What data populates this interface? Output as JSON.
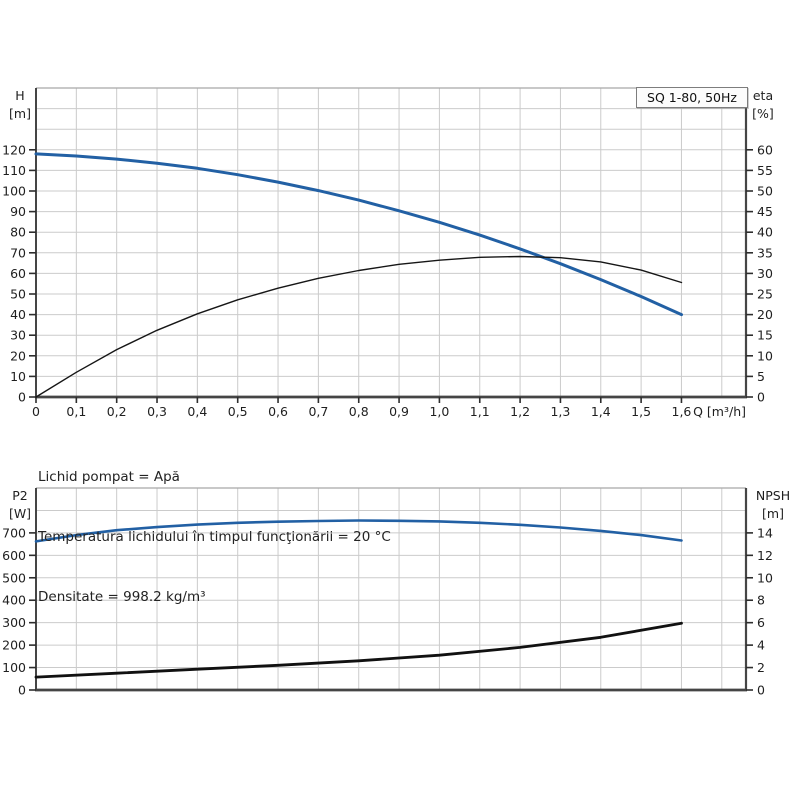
{
  "page": {
    "background": "#ffffff",
    "accent_blue": "#2260a4",
    "curve_black": "#161616",
    "grid_color": "#cbcbcb"
  },
  "info": {
    "lines": [
      "Lichid pompat = Apă",
      "Temperatura lichidului în timpul funcţionării = 20 °C",
      "Densitate = 998.2 kg/m³"
    ]
  },
  "chart_data": [
    {
      "id": "qh-eta",
      "type": "line",
      "title": "SQ 1-80, 50Hz",
      "grid": true,
      "x": {
        "min": 0,
        "max": 1.76,
        "grid_step": 0.1,
        "unit_label": "Q [m³/h]",
        "ticks": [
          [
            0,
            "0"
          ],
          [
            0.1,
            "0,1"
          ],
          [
            0.2,
            "0,2"
          ],
          [
            0.3,
            "0,3"
          ],
          [
            0.4,
            "0,4"
          ],
          [
            0.5,
            "0,5"
          ],
          [
            0.6,
            "0,6"
          ],
          [
            0.7,
            "0,7"
          ],
          [
            0.8,
            "0,8"
          ],
          [
            0.9,
            "0,9"
          ],
          [
            1.0,
            "1,0"
          ],
          [
            1.1,
            "1,1"
          ],
          [
            1.2,
            "1,2"
          ],
          [
            1.3,
            "1,3"
          ],
          [
            1.4,
            "1,4"
          ],
          [
            1.5,
            "1,5"
          ],
          [
            1.6,
            "1,6"
          ]
        ]
      },
      "left": {
        "name": "H",
        "unit": "[m]",
        "min": 0,
        "max": 150,
        "grid_step": 10,
        "ticks": [
          [
            0,
            "0"
          ],
          [
            10,
            "10"
          ],
          [
            20,
            "20"
          ],
          [
            30,
            "30"
          ],
          [
            40,
            "40"
          ],
          [
            50,
            "50"
          ],
          [
            60,
            "60"
          ],
          [
            70,
            "70"
          ],
          [
            80,
            "80"
          ],
          [
            90,
            "90"
          ],
          [
            100,
            "100"
          ],
          [
            110,
            "110"
          ],
          [
            120,
            "120"
          ]
        ]
      },
      "right": {
        "name": "eta",
        "unit": "[%]",
        "min": 0,
        "max": 75,
        "ticks": [
          [
            0,
            "0"
          ],
          [
            5,
            "5"
          ],
          [
            10,
            "10"
          ],
          [
            15,
            "15"
          ],
          [
            20,
            "20"
          ],
          [
            25,
            "25"
          ],
          [
            30,
            "30"
          ],
          [
            35,
            "35"
          ],
          [
            40,
            "40"
          ],
          [
            45,
            "45"
          ],
          [
            50,
            "50"
          ],
          [
            55,
            "55"
          ],
          [
            60,
            "60"
          ]
        ]
      },
      "series": [
        {
          "name": "head-curve",
          "label": "H",
          "axis": "left",
          "color": "#2260a4",
          "width": 3,
          "points": [
            [
              0,
              118
            ],
            [
              0.1,
              117
            ],
            [
              0.2,
              115.5
            ],
            [
              0.3,
              113.5
            ],
            [
              0.4,
              111
            ],
            [
              0.5,
              107.9
            ],
            [
              0.6,
              104.3
            ],
            [
              0.7,
              100.2
            ],
            [
              0.8,
              95.6
            ],
            [
              0.9,
              90.4
            ],
            [
              1.0,
              84.8
            ],
            [
              1.1,
              78.6
            ],
            [
              1.2,
              71.9
            ],
            [
              1.3,
              64.7
            ],
            [
              1.4,
              57.0
            ],
            [
              1.5,
              48.8
            ],
            [
              1.6,
              40
            ]
          ]
        },
        {
          "name": "efficiency-curve",
          "label": "eta",
          "axis": "right",
          "color": "#161616",
          "width": 1.4,
          "points": [
            [
              0,
              0
            ],
            [
              0.1,
              6
            ],
            [
              0.2,
              11.5
            ],
            [
              0.3,
              16.2
            ],
            [
              0.4,
              20.2
            ],
            [
              0.5,
              23.6
            ],
            [
              0.6,
              26.4
            ],
            [
              0.7,
              28.8
            ],
            [
              0.8,
              30.7
            ],
            [
              0.9,
              32.2
            ],
            [
              1.0,
              33.2
            ],
            [
              1.1,
              33.9
            ],
            [
              1.2,
              34.1
            ],
            [
              1.3,
              33.8
            ],
            [
              1.4,
              32.8
            ],
            [
              1.5,
              30.8
            ],
            [
              1.6,
              27.8
            ]
          ]
        }
      ]
    },
    {
      "id": "p2-npsh",
      "type": "line",
      "title": "",
      "grid": true,
      "x": {
        "min": 0,
        "max": 1.76,
        "grid_step": 0.1,
        "unit_label": "",
        "ticks": []
      },
      "left": {
        "name": "P2",
        "unit": "[W]",
        "min": 0,
        "max": 900,
        "grid_step": 100,
        "ticks": [
          [
            0,
            "0"
          ],
          [
            100,
            "100"
          ],
          [
            200,
            "200"
          ],
          [
            300,
            "300"
          ],
          [
            400,
            "400"
          ],
          [
            500,
            "500"
          ],
          [
            600,
            "600"
          ],
          [
            700,
            "700"
          ]
        ]
      },
      "right": {
        "name": "NPSH",
        "unit": "[m]",
        "min": 0,
        "max": 18,
        "ticks": [
          [
            0,
            "0"
          ],
          [
            2,
            "2"
          ],
          [
            4,
            "4"
          ],
          [
            6,
            "6"
          ],
          [
            8,
            "8"
          ],
          [
            10,
            "10"
          ],
          [
            12,
            "12"
          ],
          [
            14,
            "14"
          ]
        ]
      },
      "series": [
        {
          "name": "p2-curve",
          "label": "P2",
          "axis": "left",
          "color": "#2260a4",
          "width": 2.6,
          "points": [
            [
              0,
              662
            ],
            [
              0.1,
              690
            ],
            [
              0.2,
              712
            ],
            [
              0.3,
              726
            ],
            [
              0.4,
              737
            ],
            [
              0.5,
              745
            ],
            [
              0.6,
              750
            ],
            [
              0.7,
              753
            ],
            [
              0.8,
              755
            ],
            [
              0.9,
              754
            ],
            [
              1.0,
              751
            ],
            [
              1.1,
              745
            ],
            [
              1.2,
              736
            ],
            [
              1.3,
              724
            ],
            [
              1.4,
              709
            ],
            [
              1.5,
              690
            ],
            [
              1.6,
              666
            ]
          ]
        },
        {
          "name": "npsh-curve",
          "label": "NPSH",
          "axis": "right",
          "color": "#111111",
          "width": 2.8,
          "points": [
            [
              0,
              1.15
            ],
            [
              0.2,
              1.5
            ],
            [
              0.4,
              1.85
            ],
            [
              0.6,
              2.2
            ],
            [
              0.8,
              2.6
            ],
            [
              1.0,
              3.1
            ],
            [
              1.2,
              3.8
            ],
            [
              1.4,
              4.7
            ],
            [
              1.6,
              5.95
            ]
          ]
        }
      ]
    }
  ]
}
